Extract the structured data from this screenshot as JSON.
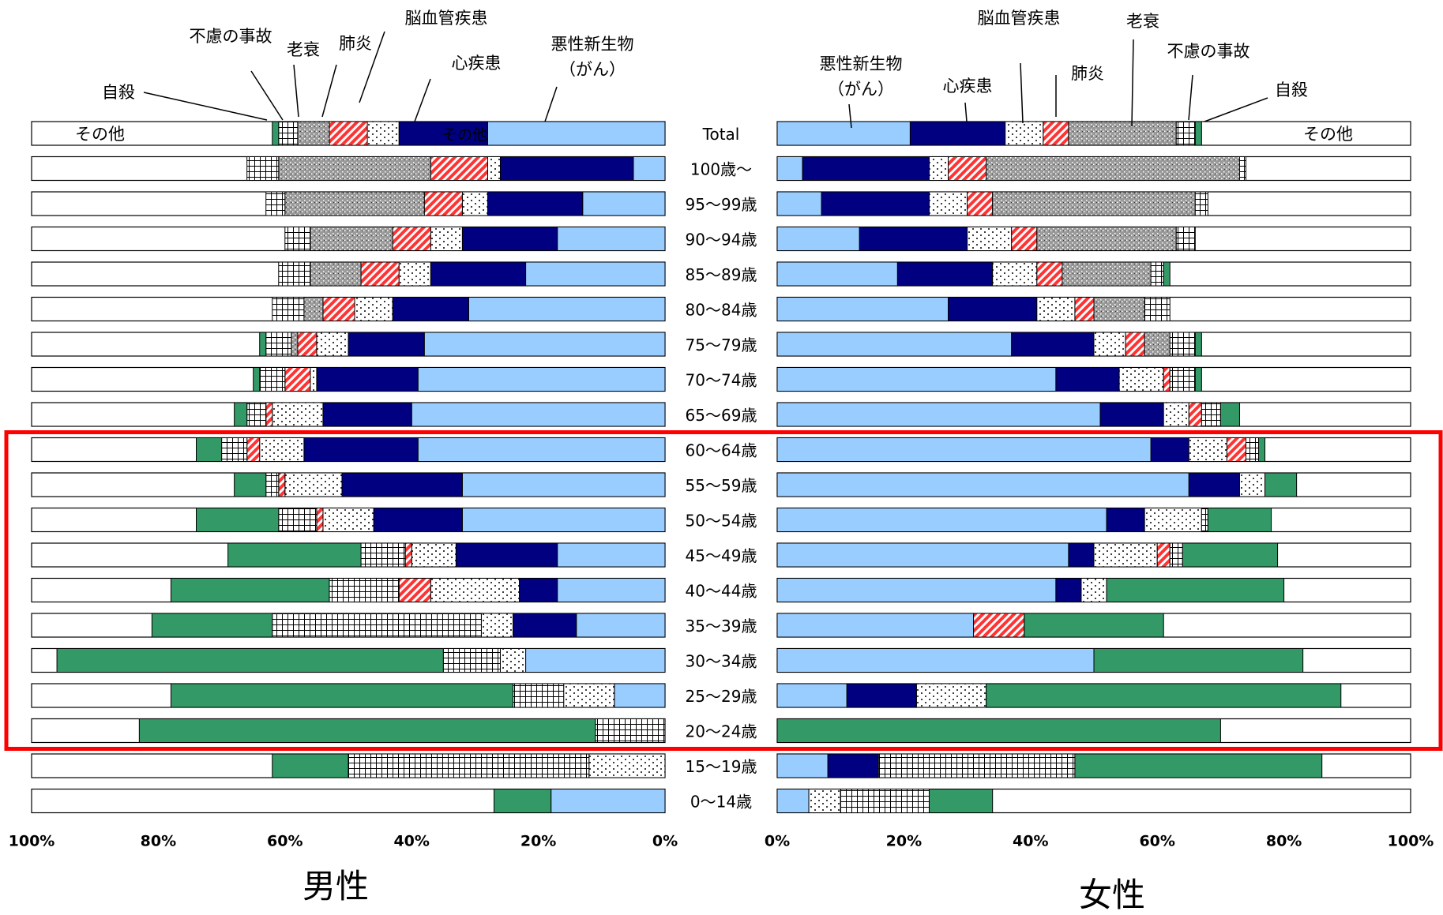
{
  "chart_data": {
    "type": "bar",
    "stacked": true,
    "orientation": "horizontal",
    "units": "%",
    "xlim": [
      0,
      100
    ],
    "xticks": [
      "100%",
      "80%",
      "60%",
      "40%",
      "20%",
      "0%"
    ],
    "xticks_right": [
      "0%",
      "20%",
      "40%",
      "60%",
      "80%",
      "100%"
    ],
    "categories": [
      "Total",
      "100歳～",
      "95～99歳",
      "90～94歳",
      "85～89歳",
      "80～84歳",
      "75～79歳",
      "70～74歳",
      "65～69歳",
      "60～64歳",
      "55～59歳",
      "50～54歳",
      "45～49歳",
      "40～44歳",
      "35～39歳",
      "30～34歳",
      "25～29歳",
      "20～24歳",
      "15～19歳",
      "0～14歳"
    ],
    "highlighted_categories": [
      "60～64歳",
      "20～24歳"
    ],
    "panel_labels": {
      "male": "男性",
      "female": "女性"
    },
    "other_label": "その他",
    "other_label_inside": "その他",
    "cause_labels": {
      "cancer_line1": "悪性新生物",
      "cancer_line2": "（がん）",
      "heart": "心疾患",
      "cerebro": "脳血管疾患",
      "pneumonia": "肺炎",
      "senility": "老衰",
      "accident": "不慮の事故",
      "suicide": "自殺"
    },
    "series_order": [
      "悪性新生物（がん）",
      "心疾患",
      "脳血管疾患",
      "肺炎",
      "老衰",
      "不慮の事故",
      "自殺"
    ],
    "series_style": [
      {
        "color": "#99ccff",
        "pattern": "solid"
      },
      {
        "color": "#000080",
        "pattern": "solid"
      },
      {
        "color": "#ffffff",
        "pattern": "dots"
      },
      {
        "color": "#ff3333",
        "pattern": "stripes"
      },
      {
        "color": "#999999",
        "pattern": "speckle"
      },
      {
        "color": "#ffffff",
        "pattern": "grid"
      },
      {
        "color": "#339966",
        "pattern": "solid"
      }
    ],
    "male": [
      [
        28,
        14,
        5,
        6,
        5,
        3,
        1
      ],
      [
        5,
        21,
        2,
        9,
        24,
        5,
        0
      ],
      [
        13,
        15,
        4,
        6,
        22,
        3,
        0
      ],
      [
        17,
        15,
        5,
        6,
        13,
        4,
        0
      ],
      [
        22,
        15,
        5,
        6,
        8,
        5,
        0
      ],
      [
        31,
        12,
        6,
        5,
        3,
        5,
        0
      ],
      [
        38,
        12,
        5,
        3,
        1,
        4,
        1
      ],
      [
        39,
        16,
        1,
        4,
        0,
        4,
        1
      ],
      [
        40,
        14,
        8,
        1,
        0,
        3,
        2
      ],
      [
        39,
        18,
        7,
        2,
        0,
        4,
        4
      ],
      [
        32,
        19,
        9,
        1,
        0,
        2,
        5
      ],
      [
        32,
        14,
        8,
        1,
        0,
        6,
        13
      ],
      [
        17,
        16,
        7,
        1,
        0,
        7,
        21
      ],
      [
        17,
        6,
        14,
        5,
        0,
        11,
        25
      ],
      [
        14,
        10,
        5,
        0,
        0,
        33,
        19
      ],
      [
        22,
        0,
        4,
        0,
        0,
        9,
        61
      ],
      [
        8,
        0,
        8,
        0,
        0,
        8,
        54
      ],
      [
        0,
        0,
        0,
        0,
        0,
        11,
        72
      ],
      [
        0,
        0,
        12,
        0,
        0,
        38,
        12
      ],
      [
        18,
        0,
        0,
        0,
        0,
        0,
        9
      ]
    ],
    "female": [
      [
        21,
        15,
        6,
        4,
        17,
        3,
        1
      ],
      [
        4,
        20,
        3,
        6,
        40,
        1,
        0
      ],
      [
        7,
        17,
        6,
        4,
        32,
        2,
        0
      ],
      [
        13,
        17,
        7,
        4,
        22,
        3,
        0
      ],
      [
        19,
        15,
        7,
        4,
        14,
        2,
        1
      ],
      [
        27,
        14,
        6,
        3,
        8,
        4,
        0
      ],
      [
        37,
        13,
        5,
        3,
        4,
        4,
        1
      ],
      [
        44,
        10,
        7,
        1,
        0,
        4,
        1
      ],
      [
        51,
        10,
        4,
        2,
        0,
        3,
        3
      ],
      [
        59,
        6,
        6,
        3,
        0,
        2,
        1
      ],
      [
        65,
        8,
        4,
        0,
        0,
        0,
        5
      ],
      [
        52,
        6,
        9,
        0,
        0,
        1,
        10
      ],
      [
        46,
        4,
        10,
        2,
        0,
        2,
        15
      ],
      [
        44,
        4,
        4,
        0,
        0,
        0,
        28
      ],
      [
        31,
        0,
        0,
        8,
        0,
        0,
        22
      ],
      [
        50,
        0,
        0,
        0,
        0,
        0,
        33
      ],
      [
        11,
        11,
        11,
        0,
        0,
        0,
        56
      ],
      [
        0,
        0,
        0,
        0,
        0,
        0,
        70
      ],
      [
        8,
        8,
        0,
        0,
        0,
        31,
        39
      ],
      [
        5,
        0,
        5,
        0,
        0,
        14,
        10
      ]
    ],
    "colors": {
      "highlight_box": "#ff0000",
      "frame": "#000000",
      "other": "#ffffff"
    }
  }
}
